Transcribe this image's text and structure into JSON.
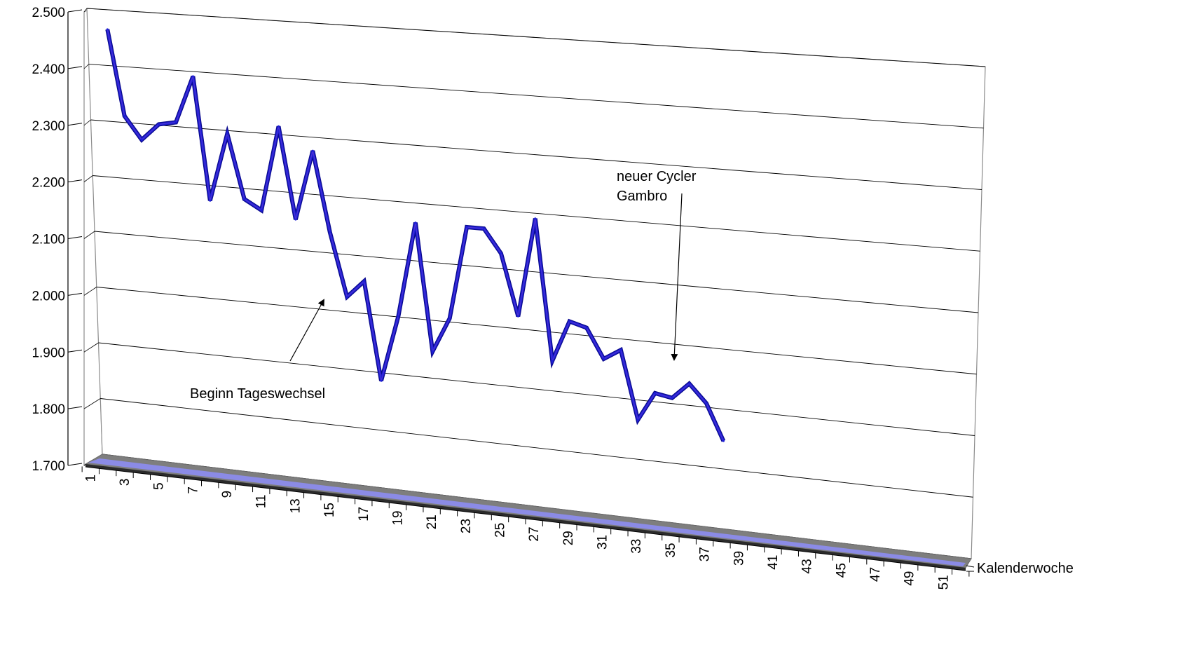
{
  "chart_data": {
    "type": "line",
    "title": "",
    "xlabel": "Kalenderwoche",
    "ylabel": "",
    "ylim": [
      1700,
      2500
    ],
    "y_ticks": [
      "1.700",
      "1.800",
      "1.900",
      "2.000",
      "2.100",
      "2.200",
      "2.300",
      "2.400",
      "2.500"
    ],
    "x_ticks": [
      "1",
      "3",
      "5",
      "7",
      "9",
      "11",
      "13",
      "15",
      "17",
      "19",
      "21",
      "23",
      "25",
      "27",
      "29",
      "31",
      "33",
      "35",
      "37",
      "39",
      "41",
      "43",
      "45",
      "47",
      "49",
      "51"
    ],
    "x_range": [
      1,
      52
    ],
    "grid": true,
    "perspective": "3d",
    "series": [
      {
        "color": "#1f1fd6",
        "x": [
          1,
          2,
          3,
          4,
          5,
          6,
          7,
          8,
          9,
          10,
          11,
          12,
          13,
          14,
          15,
          16,
          17,
          18,
          19,
          20,
          21,
          22,
          23,
          24,
          25,
          26,
          27,
          28,
          29,
          30,
          31,
          32,
          33,
          34,
          35,
          36,
          37,
          38
        ],
        "values": [
          2463,
          2310,
          2270,
          2300,
          2306,
          2390,
          2172,
          2293,
          2180,
          2163,
          2313,
          2152,
          2275,
          2135,
          2025,
          2055,
          1885,
          2000,
          2165,
          1945,
          2005,
          2165,
          2165,
          2125,
          2020,
          2190,
          1950,
          2020,
          2012,
          1962,
          1980,
          1865,
          1913,
          1908,
          1935,
          1905,
          1845,
          null
        ]
      }
    ],
    "annotations": [
      {
        "text": "Beginn Tageswechsel",
        "target_x": 16
      },
      {
        "lines": [
          "neuer Cycler",
          "Gambro"
        ],
        "target_x": 37
      }
    ]
  }
}
